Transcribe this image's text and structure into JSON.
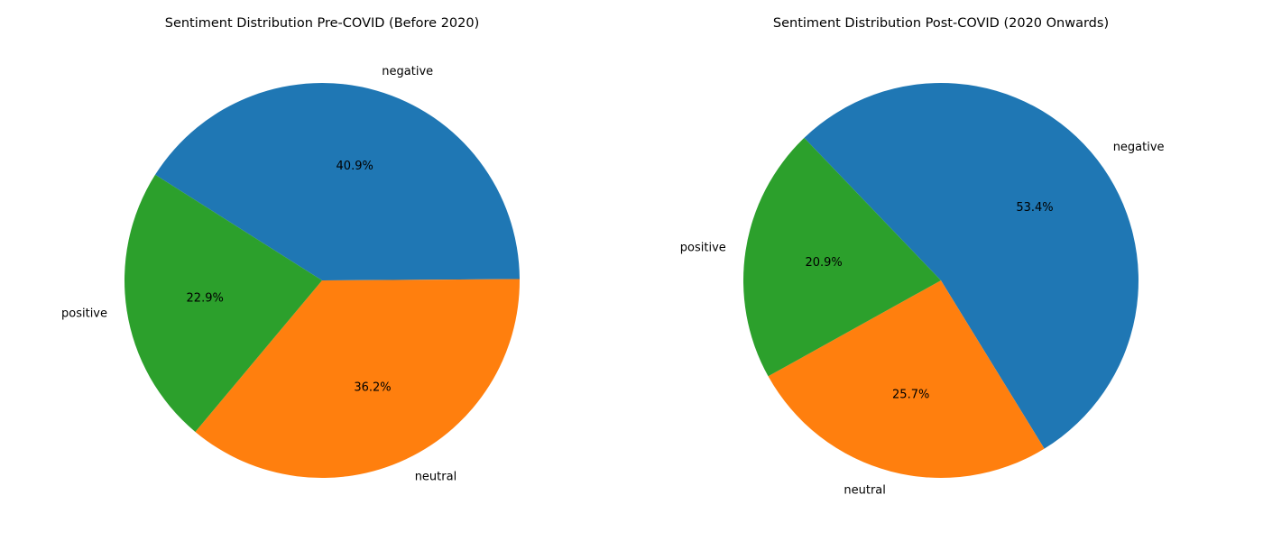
{
  "chart_data": [
    {
      "type": "pie",
      "title": "Sentiment Distribution Pre-COVID (Before 2020)",
      "slices": [
        {
          "label": "negative",
          "value": 40.9,
          "pct_label": "40.9%",
          "color": "#1f77b4"
        },
        {
          "label": "neutral",
          "value": 36.2,
          "pct_label": "36.2%",
          "color": "#ff7f0e"
        },
        {
          "label": "positive",
          "value": 22.9,
          "pct_label": "22.9%",
          "color": "#2ca02c"
        }
      ]
    },
    {
      "type": "pie",
      "title": "Sentiment Distribution Post-COVID (2020 Onwards)",
      "slices": [
        {
          "label": "negative",
          "value": 53.4,
          "pct_label": "53.4%",
          "color": "#1f77b4"
        },
        {
          "label": "neutral",
          "value": 25.7,
          "pct_label": "25.7%",
          "color": "#ff7f0e"
        },
        {
          "label": "positive",
          "value": 20.9,
          "pct_label": "20.9%",
          "color": "#2ca02c"
        }
      ]
    }
  ]
}
